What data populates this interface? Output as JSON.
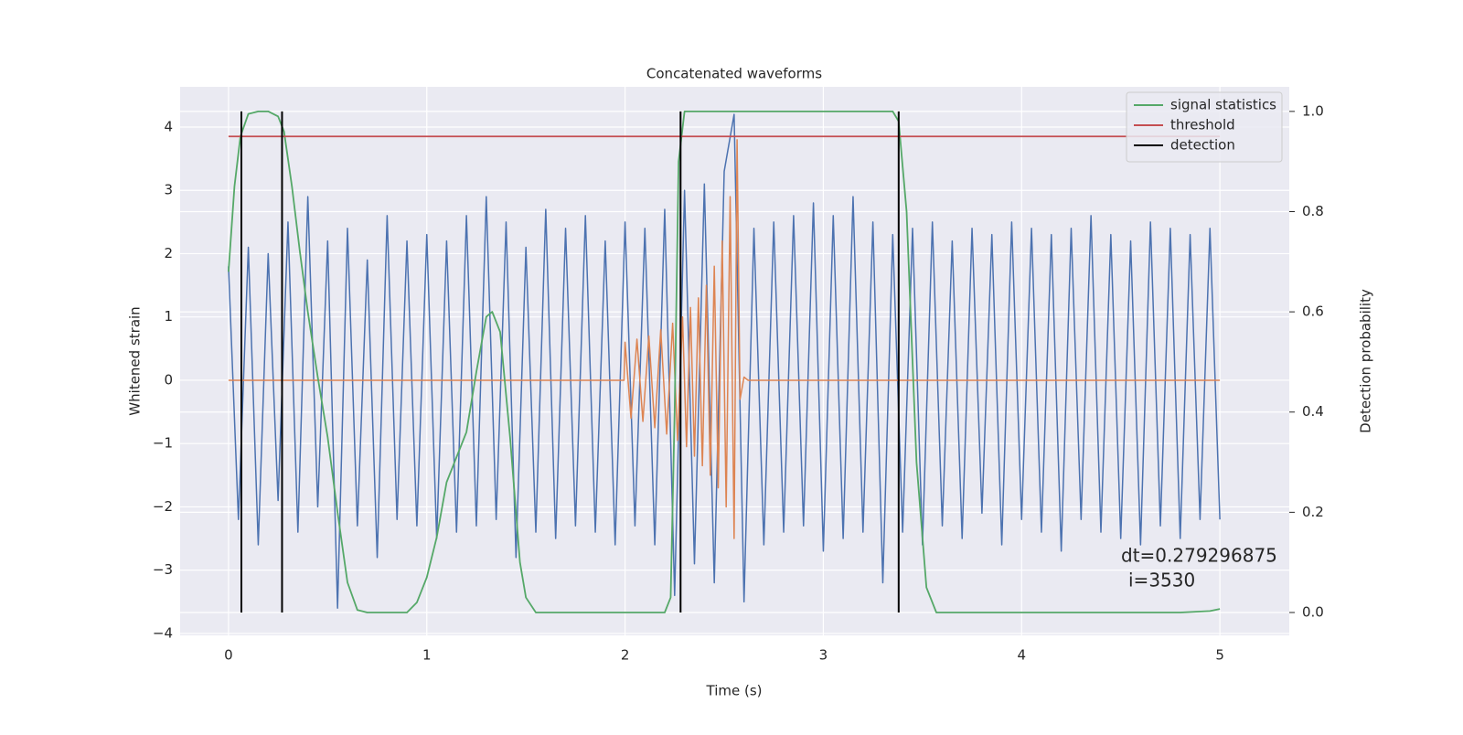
{
  "chart_data": {
    "type": "line",
    "title": "Concatenated waveforms",
    "xlabel": "Time (s)",
    "ylabel": "Whitened strain",
    "y2label": "Detection probability",
    "xlim": [
      -0.244,
      5.35
    ],
    "ylim": [
      -4.03,
      4.635
    ],
    "y2lim": [
      -0.0456,
      1.049
    ],
    "xticks": [
      0,
      1,
      2,
      3,
      4,
      5
    ],
    "yticks": [
      {
        "value": -4,
        "label": "−4"
      },
      {
        "value": -3,
        "label": "−3"
      },
      {
        "value": -2,
        "label": "−2"
      },
      {
        "value": -1,
        "label": "−1"
      },
      0,
      1,
      2,
      3,
      4
    ],
    "y2ticks": [
      {
        "value": 0,
        "label": "0.0"
      },
      0.2,
      0.4,
      0.6,
      0.8,
      {
        "value": 1,
        "label": "1.0"
      }
    ],
    "grid": true,
    "legend": "upper right",
    "series": [
      {
        "color": "#4c72b0",
        "x": [
          0,
          0.05,
          0.1,
          0.15,
          0.2,
          0.25,
          0.3,
          0.35,
          0.4,
          0.45,
          0.5,
          0.55,
          0.6,
          0.65,
          0.7,
          0.75,
          0.8,
          0.85,
          0.9,
          0.95,
          1,
          1.05,
          1.1,
          1.15,
          1.2,
          1.25,
          1.3,
          1.35,
          1.4,
          1.45,
          1.5,
          1.55,
          1.6,
          1.65,
          1.7,
          1.75,
          1.8,
          1.85,
          1.9,
          1.95,
          2,
          2.05,
          2.1,
          2.15,
          2.2,
          2.25,
          2.3,
          2.35,
          2.4,
          2.45,
          2.5,
          2.55,
          2.6,
          2.65,
          2.7,
          2.75,
          2.8,
          2.85,
          2.9,
          2.95,
          3,
          3.05,
          3.1,
          3.15,
          3.2,
          3.25,
          3.3,
          3.35,
          3.4,
          3.45,
          3.5,
          3.55,
          3.6,
          3.65,
          3.7,
          3.75,
          3.8,
          3.85,
          3.9,
          3.95,
          4,
          4.05,
          4.1,
          4.15,
          4.2,
          4.25,
          4.3,
          4.35,
          4.4,
          4.45,
          4.5,
          4.55,
          4.6,
          4.65,
          4.7,
          4.75,
          4.8,
          4.85,
          4.9,
          4.95,
          5
        ],
        "values": [
          1.8,
          -2.2,
          2.1,
          -2.6,
          2,
          -1.9,
          2.5,
          -2.4,
          2.9,
          -2,
          2.2,
          -3.6,
          2.4,
          -2.3,
          1.9,
          -2.8,
          2.6,
          -2.2,
          2.2,
          -2.3,
          2.3,
          -2.5,
          2.2,
          -2.4,
          2.6,
          -2.3,
          2.9,
          -2.2,
          2.5,
          -2.8,
          2.1,
          -2.4,
          2.7,
          -2.5,
          2.4,
          -2.3,
          2.6,
          -2.4,
          2.2,
          -2.6,
          2.5,
          -2.3,
          2.4,
          -2.6,
          2.7,
          -3.4,
          3,
          -2.9,
          3.1,
          -3.2,
          3.3,
          4.2,
          -3.5,
          2.4,
          -2.6,
          2.5,
          -2.4,
          2.6,
          -2.3,
          2.8,
          -2.7,
          2.6,
          -2.5,
          2.9,
          -2.4,
          2.5,
          -3.2,
          2.3,
          -2.4,
          2.4,
          -2.6,
          2.5,
          -2.3,
          2.2,
          -2.5,
          2.4,
          -2.1,
          2.3,
          -2.6,
          2.5,
          -2.2,
          2.4,
          -2.4,
          2.3,
          -2.7,
          2.4,
          -2.2,
          2.6,
          -2.4,
          2.3,
          -2.5,
          2.2,
          -2.6,
          2.5,
          -2.3,
          2.4,
          -2.5,
          2.3,
          -2.2,
          2.4,
          -2.2
        ]
      },
      {
        "color": "#dd8452",
        "x": [
          0,
          1.995,
          2,
          2.03,
          2.06,
          2.09,
          2.12,
          2.15,
          2.18,
          2.21,
          2.24,
          2.265,
          2.29,
          2.31,
          2.33,
          2.35,
          2.37,
          2.39,
          2.41,
          2.43,
          2.45,
          2.47,
          2.49,
          2.51,
          2.53,
          2.55,
          2.565,
          2.58,
          2.6,
          2.62,
          5
        ],
        "values": [
          0,
          0,
          0.6,
          -0.6,
          0.65,
          -0.65,
          0.7,
          -0.75,
          0.8,
          -0.85,
          0.9,
          -0.95,
          1,
          -1.05,
          1.15,
          -1.2,
          1.3,
          -1.35,
          1.5,
          -1.5,
          1.8,
          -1.7,
          2.2,
          -2,
          2.9,
          -2.5,
          3.8,
          -0.3,
          0.05,
          0,
          0
        ]
      },
      {
        "name": "signal statistics",
        "color": "#55a868",
        "axis": "y2",
        "x": [
          0,
          0.03,
          0.06,
          0.1,
          0.15,
          0.2,
          0.25,
          0.28,
          0.32,
          0.36,
          0.4,
          0.45,
          0.5,
          0.55,
          0.6,
          0.65,
          0.7,
          0.9,
          0.95,
          1,
          1.05,
          1.1,
          1.15,
          1.2,
          1.25,
          1.3,
          1.33,
          1.37,
          1.42,
          1.47,
          1.5,
          1.55,
          2.2,
          2.23,
          2.25,
          2.27,
          2.3,
          3.35,
          3.38,
          3.42,
          3.47,
          3.52,
          3.57,
          4.8,
          4.95,
          5
        ],
        "values": [
          0.68,
          0.85,
          0.95,
          0.995,
          1,
          1,
          0.99,
          0.96,
          0.85,
          0.72,
          0.6,
          0.47,
          0.35,
          0.2,
          0.06,
          0.005,
          0,
          0,
          0.02,
          0.07,
          0.15,
          0.26,
          0.31,
          0.36,
          0.48,
          0.59,
          0.6,
          0.56,
          0.35,
          0.1,
          0.03,
          0,
          0,
          0.03,
          0.4,
          0.9,
          1,
          1,
          0.98,
          0.8,
          0.3,
          0.05,
          0,
          0,
          0.003,
          0.007
        ]
      },
      {
        "name": "threshold",
        "color": "#c44e52",
        "axis": "y2",
        "x": [
          0,
          5
        ],
        "values": [
          0.95,
          0.95
        ]
      },
      {
        "name": "detection",
        "color": "#000000",
        "axis": "y2",
        "kind": "vline",
        "x": [
          0.065,
          0.27,
          2.28,
          3.38
        ],
        "values": [
          1,
          1,
          1,
          1
        ]
      }
    ],
    "annotations": [
      "dt=0.279296875",
      "i=3530"
    ]
  }
}
